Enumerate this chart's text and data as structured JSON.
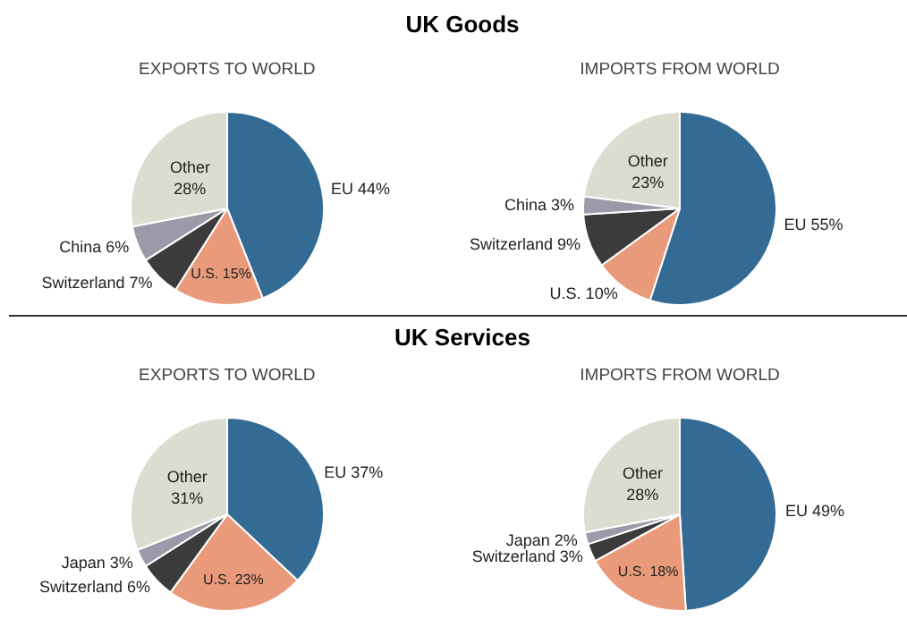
{
  "chart_data": [
    {
      "type": "pie",
      "title": "EXPORTS TO WORLD",
      "annotations": [
        "UK Goods"
      ],
      "categories": [
        "EU",
        "U.S.",
        "Switzerland",
        "China",
        "Other"
      ],
      "values": [
        44,
        15,
        7,
        6,
        28
      ],
      "value_labels": [
        "44%",
        "15%",
        "7%",
        "6%",
        "28%"
      ],
      "colors": [
        "#336b94",
        "#e99a7a",
        "#3b3b3b",
        "#9a9aa8",
        "#dcdcd0"
      ]
    },
    {
      "type": "pie",
      "title": "IMPORTS FROM WORLD",
      "categories": [
        "EU",
        "U.S.",
        "Switzerland",
        "China",
        "Other"
      ],
      "values": [
        55,
        10,
        9,
        3,
        23
      ],
      "value_labels": [
        "55%",
        "10%",
        "9%",
        "3%",
        "23%"
      ],
      "colors": [
        "#336b94",
        "#e99a7a",
        "#3b3b3b",
        "#9a9aa8",
        "#dcdcd0"
      ]
    },
    {
      "type": "pie",
      "title": "EXPORTS TO WORLD",
      "annotations": [
        "UK Services"
      ],
      "categories": [
        "EU",
        "U.S.",
        "Switzerland",
        "Japan",
        "Other"
      ],
      "values": [
        37,
        23,
        6,
        3,
        31
      ],
      "value_labels": [
        "37%",
        "23%",
        "6%",
        "3%",
        "31%"
      ],
      "colors": [
        "#336b94",
        "#e99a7a",
        "#3b3b3b",
        "#9a9aa8",
        "#dcdcd0"
      ]
    },
    {
      "type": "pie",
      "title": "IMPORTS FROM WORLD",
      "categories": [
        "EU",
        "U.S.",
        "Switzerland",
        "Japan",
        "Other"
      ],
      "values": [
        49,
        18,
        3,
        2,
        28
      ],
      "value_labels": [
        "49%",
        "18%",
        "3%",
        "2%",
        "28%"
      ],
      "colors": [
        "#336b94",
        "#e99a7a",
        "#3b3b3b",
        "#9a9aa8",
        "#dcdcd0"
      ]
    }
  ]
}
